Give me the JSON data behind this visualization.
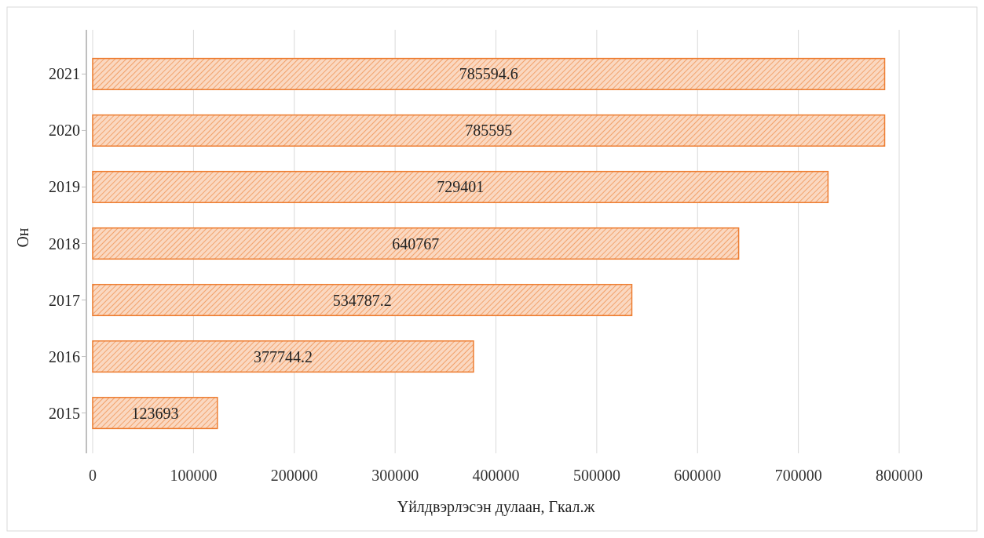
{
  "chart_data": {
    "type": "bar",
    "orientation": "horizontal",
    "xlabel": "Үйлдвэрлэсэн дулаан, Гкал.ж",
    "ylabel": "Он",
    "categories": [
      "2021",
      "2020",
      "2019",
      "2018",
      "2017",
      "2016",
      "2015"
    ],
    "values": [
      785594.6,
      785595,
      729401,
      640767,
      534787.2,
      377744.2,
      123693
    ],
    "color": "#ed7d31",
    "xlim": [
      0,
      800000
    ],
    "xticks": [
      0,
      100000,
      200000,
      300000,
      400000,
      500000,
      600000,
      700000,
      800000
    ],
    "grid": "x",
    "data_labels": true
  }
}
